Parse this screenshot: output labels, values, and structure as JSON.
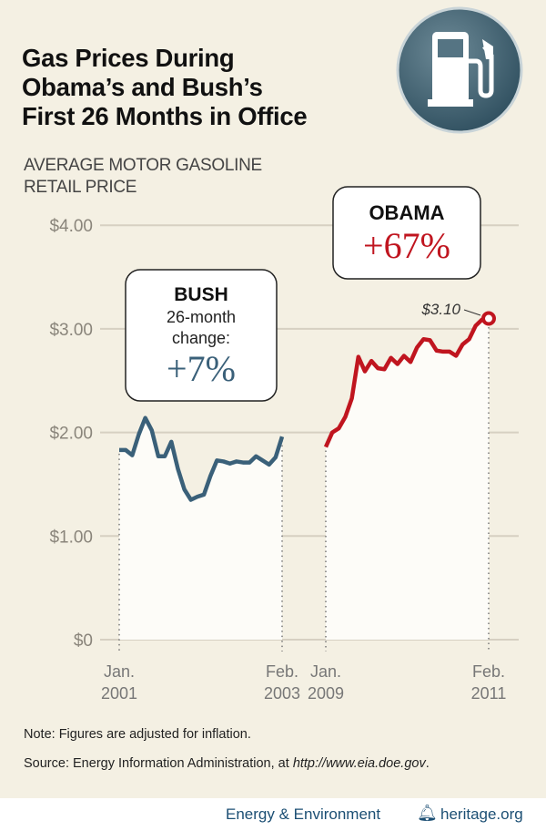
{
  "title": [
    "Gas Prices During",
    "Obama’s and Bush’s",
    "First 26 Months in Office"
  ],
  "subtitle": [
    "AVERAGE MOTOR GASOLINE",
    "RETAIL PRICE"
  ],
  "icon": "gas-pump-icon",
  "colors": {
    "bush": "#3a6079",
    "obama": "#c0151f",
    "background": "#f4f0e3"
  },
  "chart_data": {
    "type": "line",
    "ylim": [
      0,
      4
    ],
    "ytick_labels": [
      "$0",
      "$1.00",
      "$2.00",
      "$3.00",
      "$4.00"
    ],
    "yticks": [
      0,
      1,
      2,
      3,
      4
    ],
    "grid": true,
    "series": [
      {
        "name": "BUSH",
        "x_labels": [
          [
            "Jan.",
            "2001"
          ],
          [
            "Feb.",
            "2003"
          ]
        ],
        "values": [
          1.83,
          1.83,
          1.78,
          1.98,
          2.14,
          2.02,
          1.77,
          1.77,
          1.91,
          1.65,
          1.45,
          1.35,
          1.38,
          1.4,
          1.58,
          1.73,
          1.72,
          1.7,
          1.72,
          1.71,
          1.71,
          1.77,
          1.73,
          1.69,
          1.76,
          1.96
        ]
      },
      {
        "name": "OBAMA",
        "x_labels": [
          [
            "Jan.",
            "2009"
          ],
          [
            "Feb.",
            "2011"
          ]
        ],
        "values": [
          1.86,
          2.0,
          2.04,
          2.15,
          2.33,
          2.73,
          2.59,
          2.69,
          2.62,
          2.61,
          2.72,
          2.66,
          2.74,
          2.68,
          2.82,
          2.9,
          2.89,
          2.79,
          2.78,
          2.78,
          2.74,
          2.85,
          2.9,
          3.03,
          3.09,
          3.1
        ]
      }
    ],
    "annotations": {
      "bush": {
        "name": "BUSH",
        "line1": "26-month",
        "line2": "change:",
        "value": "+7%"
      },
      "obama": {
        "name": "OBAMA",
        "value": "+67%"
      },
      "end_label": "$3.10"
    }
  },
  "note": {
    "label": "Note:",
    "text": "Figures are adjusted for inflation."
  },
  "source": {
    "label": "Source:",
    "text": "Energy Information Administration, at ",
    "url": "http://www.eia.doe.gov",
    "end": "."
  },
  "footer": {
    "left": "Energy & Environment",
    "right": "heritage.org"
  }
}
